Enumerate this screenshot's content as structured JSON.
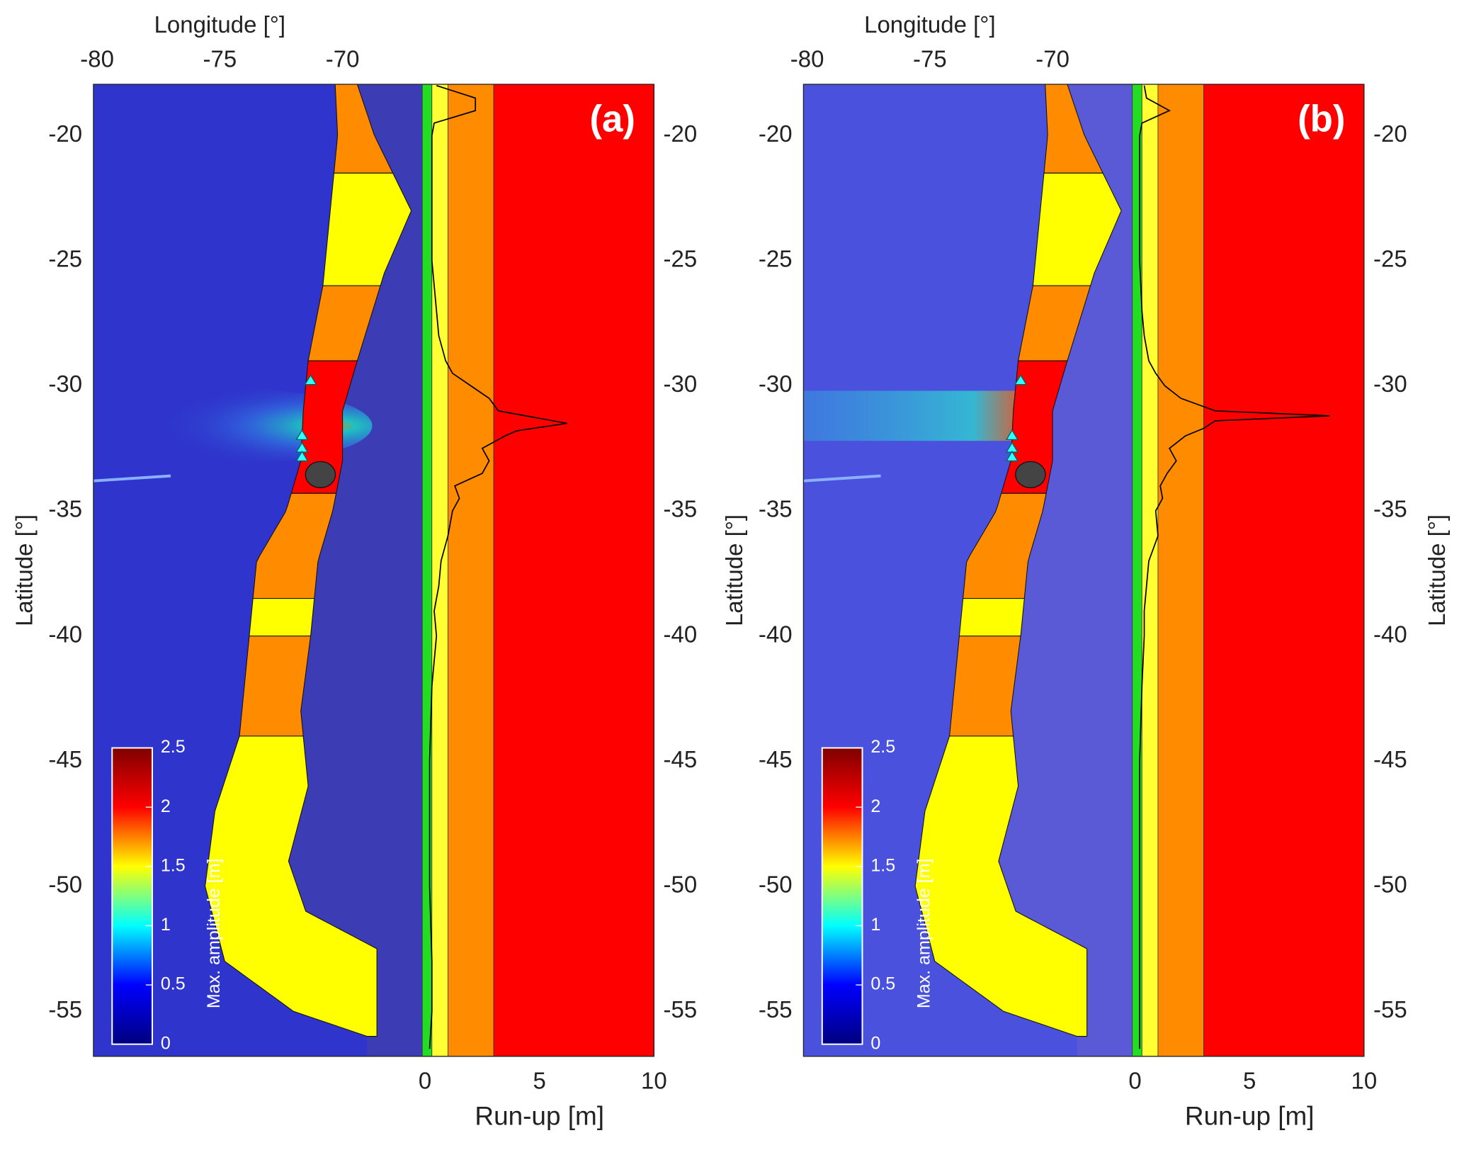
{
  "chart_data": [
    {
      "type": "map",
      "panel_label": "(a)",
      "xlabel": "Longitude [°]",
      "ylabel": "Latitude [°]",
      "xlim": [
        -80.15,
        -66.75
      ],
      "xticks": [
        -80,
        -75,
        -70
      ],
      "ylim": [
        -56.8,
        -17.95
      ],
      "yticks": [
        -55,
        -50,
        -45,
        -40,
        -35,
        -30,
        -25,
        -20
      ],
      "ocean_color": "#2f35cc",
      "background_color": "#3c3cb4",
      "colorbar": {
        "label": "Max. amplitude [m]",
        "lim": [
          0,
          2.5
        ],
        "ticks": [
          0,
          0.5,
          1,
          1.5,
          2,
          2.5
        ],
        "colors": [
          "#00007f",
          "#0000ff",
          "#00ffff",
          "#ffff00",
          "#ff0000",
          "#7f0000"
        ]
      },
      "runup": {
        "xlabel": "Run-up [m]",
        "xlim": [
          -0.12,
          10
        ],
        "xticks": [
          0,
          5,
          10
        ],
        "bands": [
          {
            "max": 0.3,
            "color": "#22dd22"
          },
          {
            "max": 1,
            "color": "#ffff33"
          },
          {
            "max": 3,
            "color": "#ff8c00"
          },
          {
            "max": 10,
            "color": "#ff0000"
          }
        ],
        "lat": [
          -18,
          -18.5,
          -19,
          -19.5,
          -20,
          -22,
          -25,
          -27,
          -28,
          -29,
          -29.5,
          -30,
          -30.5,
          -31,
          -31.3,
          -31.5,
          -31.8,
          -32,
          -32.5,
          -33,
          -33.5,
          -34,
          -34.5,
          -35,
          -36,
          -37,
          -38,
          -39,
          -40,
          -42,
          -45,
          -50,
          -53,
          -55,
          -56.5
        ],
        "values": [
          0.5,
          2.2,
          2.2,
          0.4,
          0.3,
          0.3,
          0.3,
          0.5,
          0.6,
          0.9,
          1.2,
          2.0,
          2.8,
          3.2,
          5.0,
          6.2,
          4.0,
          3.5,
          2.5,
          2.8,
          2.5,
          1.3,
          1.5,
          1.2,
          1.0,
          0.7,
          0.6,
          0.4,
          0.5,
          0.3,
          0.2,
          0.2,
          0.3,
          0.3,
          0.2
        ]
      }
    },
    {
      "type": "map",
      "panel_label": "(b)",
      "xlabel": "Longitude [°]",
      "ylabel": "Latitude [°]",
      "right_ylabel": "Latitude [°]",
      "xlim": [
        -80.15,
        -66.75
      ],
      "xticks": [
        -80,
        -75,
        -70
      ],
      "ylim": [
        -56.8,
        -17.95
      ],
      "yticks": [
        -55,
        -50,
        -45,
        -40,
        -35,
        -30,
        -25,
        -20
      ],
      "ocean_color": "#4a52dd",
      "background_color": "#5a5ad6",
      "colorbar": {
        "label": "Max. amplitude [m]",
        "lim": [
          0,
          2.5
        ],
        "ticks": [
          0,
          0.5,
          1,
          1.5,
          2,
          2.5
        ],
        "colors": [
          "#00007f",
          "#0000ff",
          "#00ffff",
          "#ffff00",
          "#ff0000",
          "#7f0000"
        ]
      },
      "runup": {
        "xlabel": "Run-up [m]",
        "xlim": [
          -0.12,
          10
        ],
        "xticks": [
          0,
          5,
          10
        ],
        "bands": [
          {
            "max": 0.3,
            "color": "#22dd22"
          },
          {
            "max": 1,
            "color": "#ffff33"
          },
          {
            "max": 3,
            "color": "#ff8c00"
          },
          {
            "max": 10,
            "color": "#ff0000"
          }
        ],
        "lat": [
          -18,
          -18.5,
          -19,
          -19.5,
          -20,
          -22,
          -25,
          -27,
          -28,
          -29,
          -29.5,
          -30,
          -30.5,
          -31,
          -31.2,
          -31.4,
          -31.7,
          -32,
          -32.5,
          -33,
          -33.5,
          -34,
          -34.5,
          -35,
          -36,
          -37,
          -38,
          -39,
          -40,
          -42,
          -45,
          -50,
          -53,
          -55,
          -56.5
        ],
        "values": [
          0.4,
          0.5,
          1.5,
          0.3,
          0.2,
          0.2,
          0.2,
          0.3,
          0.4,
          0.6,
          0.9,
          1.3,
          2.0,
          3.5,
          8.5,
          3.5,
          3.0,
          2.2,
          1.5,
          1.8,
          1.4,
          1.1,
          1.2,
          0.9,
          1.0,
          0.6,
          0.5,
          0.4,
          0.4,
          0.3,
          0.2,
          0.2,
          0.2,
          0.2,
          0.2
        ]
      }
    }
  ]
}
